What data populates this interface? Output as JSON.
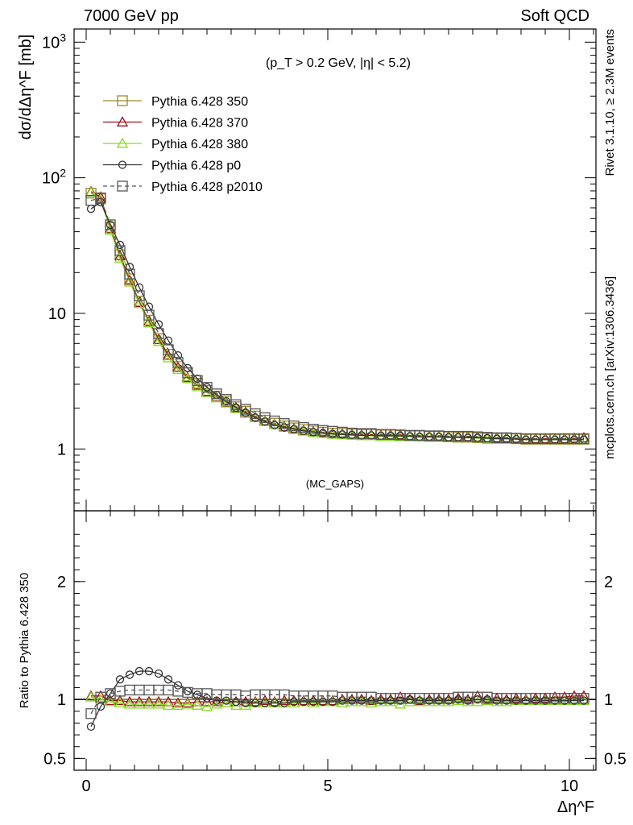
{
  "header": {
    "left": "7000 GeV pp",
    "right": "Soft QCD"
  },
  "side_labels": {
    "rivet": "Rivet 3.1.10, ≥ 2.3M events",
    "mcplots": "mcplots.cern.ch [arXiv:1306.3436]"
  },
  "chart_data": [
    {
      "type": "line",
      "panel": "main",
      "ylabel": "dσ/dΔη^F [mb]",
      "yscale": "log",
      "ylim": [
        0.35,
        1250
      ],
      "xlim": [
        -0.25,
        10.55
      ],
      "ytick_labels": [
        "1",
        "10",
        "10^2",
        "10^3"
      ],
      "annotation": "(p_T > 0.2 GeV, |η| < 5.2)",
      "watermark": "(MC_GAPS)",
      "legend_placement": "top-left",
      "x": [
        0.1,
        0.3,
        0.5,
        0.7,
        0.9,
        1.1,
        1.3,
        1.5,
        1.7,
        1.9,
        2.1,
        2.3,
        2.5,
        2.7,
        2.9,
        3.1,
        3.3,
        3.5,
        3.7,
        3.9,
        4.1,
        4.3,
        4.5,
        4.7,
        4.9,
        5.1,
        5.3,
        5.5,
        5.7,
        5.9,
        6.1,
        6.3,
        6.5,
        6.7,
        6.9,
        7.1,
        7.3,
        7.5,
        7.7,
        7.9,
        8.1,
        8.3,
        8.5,
        8.7,
        8.9,
        9.1,
        9.3,
        9.5,
        9.7,
        9.9,
        10.1,
        10.3
      ],
      "series": [
        {
          "name": "Pythia 6.428 350",
          "color": "#9a8a2a",
          "marker": "square",
          "dash": "solid",
          "values": [
            77,
            70,
            43,
            27,
            18,
            12.3,
            8.9,
            6.5,
            5.0,
            4.05,
            3.45,
            3.05,
            2.7,
            2.45,
            2.25,
            2.05,
            1.9,
            1.75,
            1.63,
            1.55,
            1.48,
            1.43,
            1.39,
            1.36,
            1.33,
            1.31,
            1.3,
            1.29,
            1.28,
            1.28,
            1.27,
            1.27,
            1.26,
            1.25,
            1.25,
            1.24,
            1.24,
            1.23,
            1.22,
            1.22,
            1.21,
            1.2,
            1.2,
            1.2,
            1.19,
            1.18,
            1.18,
            1.18,
            1.18,
            1.18,
            1.18,
            1.18
          ]
        },
        {
          "name": "Pythia 6.428 370",
          "color": "#a01020",
          "marker": "triangle",
          "dash": "solid",
          "values": [
            79,
            72,
            42,
            26.5,
            17.5,
            12.0,
            8.7,
            6.4,
            4.9,
            4.0,
            3.35,
            2.95,
            2.65,
            2.4,
            2.2,
            2.02,
            1.87,
            1.72,
            1.61,
            1.52,
            1.46,
            1.41,
            1.37,
            1.34,
            1.32,
            1.3,
            1.29,
            1.28,
            1.27,
            1.27,
            1.26,
            1.27,
            1.27,
            1.25,
            1.24,
            1.24,
            1.24,
            1.23,
            1.23,
            1.23,
            1.22,
            1.21,
            1.21,
            1.21,
            1.2,
            1.19,
            1.19,
            1.19,
            1.19,
            1.19,
            1.2,
            1.21
          ]
        },
        {
          "name": "Pythia 6.428 380",
          "color": "#88dd22",
          "marker": "triangle",
          "dash": "solid",
          "values": [
            78,
            69,
            41,
            25.5,
            17.0,
            11.8,
            8.5,
            6.2,
            4.7,
            3.85,
            3.3,
            2.9,
            2.6,
            2.38,
            2.18,
            1.98,
            1.82,
            1.7,
            1.59,
            1.51,
            1.44,
            1.39,
            1.35,
            1.32,
            1.3,
            1.28,
            1.27,
            1.26,
            1.25,
            1.25,
            1.24,
            1.24,
            1.23,
            1.23,
            1.22,
            1.22,
            1.22,
            1.21,
            1.21,
            1.21,
            1.2,
            1.19,
            1.19,
            1.19,
            1.18,
            1.17,
            1.17,
            1.17,
            1.17,
            1.17,
            1.17,
            1.17
          ]
        },
        {
          "name": "Pythia 6.428 p0",
          "color": "#333333",
          "marker": "circle",
          "dash": "solid",
          "values": [
            59,
            66,
            45,
            32,
            22,
            15.5,
            11.2,
            8.3,
            6.3,
            4.9,
            3.95,
            3.3,
            2.85,
            2.5,
            2.25,
            2.02,
            1.85,
            1.7,
            1.59,
            1.5,
            1.44,
            1.4,
            1.36,
            1.33,
            1.31,
            1.29,
            1.28,
            1.27,
            1.26,
            1.26,
            1.25,
            1.25,
            1.25,
            1.24,
            1.23,
            1.23,
            1.23,
            1.22,
            1.22,
            1.21,
            1.21,
            1.2,
            1.19,
            1.19,
            1.18,
            1.17,
            1.17,
            1.17,
            1.17,
            1.17,
            1.17,
            1.17
          ]
        },
        {
          "name": "Pythia 6.428 p2010",
          "color": "#555555",
          "marker": "square",
          "dash": "dashed",
          "values": [
            68,
            71,
            45,
            29,
            19.5,
            13.5,
            9.7,
            7.1,
            5.4,
            4.35,
            3.65,
            3.2,
            2.85,
            2.55,
            2.32,
            2.12,
            1.96,
            1.82,
            1.7,
            1.61,
            1.54,
            1.48,
            1.44,
            1.4,
            1.37,
            1.35,
            1.33,
            1.31,
            1.3,
            1.3,
            1.28,
            1.28,
            1.27,
            1.26,
            1.26,
            1.25,
            1.25,
            1.24,
            1.24,
            1.24,
            1.23,
            1.22,
            1.21,
            1.21,
            1.2,
            1.19,
            1.19,
            1.19,
            1.19,
            1.19,
            1.19,
            1.19
          ]
        }
      ]
    },
    {
      "type": "line",
      "panel": "ratio",
      "ylabel": "Ratio to Pythia 6.428 350",
      "xlabel": "Δη^F",
      "ylim": [
        0.4,
        2.6
      ],
      "xlim": [
        -0.25,
        10.55
      ],
      "ytick_labels": [
        "0.5",
        "1",
        "2"
      ],
      "xtick_labels": [
        "0",
        "5",
        "10"
      ],
      "reference_line": 1,
      "x": [
        0.1,
        0.3,
        0.5,
        0.7,
        0.9,
        1.1,
        1.3,
        1.5,
        1.7,
        1.9,
        2.1,
        2.3,
        2.5,
        2.7,
        2.9,
        3.1,
        3.3,
        3.5,
        3.7,
        3.9,
        4.1,
        4.3,
        4.5,
        4.7,
        4.9,
        5.1,
        5.3,
        5.5,
        5.7,
        5.9,
        6.1,
        6.3,
        6.5,
        6.7,
        6.9,
        7.1,
        7.3,
        7.5,
        7.7,
        7.9,
        8.1,
        8.3,
        8.5,
        8.7,
        8.9,
        9.1,
        9.3,
        9.5,
        9.7,
        9.9,
        10.1,
        10.3
      ],
      "series": [
        {
          "name": "Pythia 6.428 350",
          "color": "#9a8a2a",
          "marker": "none",
          "dash": "solid",
          "values": [
            1,
            1,
            1,
            1,
            1,
            1,
            1,
            1,
            1,
            1,
            1,
            1,
            1,
            1,
            1,
            1,
            1,
            1,
            1,
            1,
            1,
            1,
            1,
            1,
            1,
            1,
            1,
            1,
            1,
            1,
            1,
            1,
            1,
            1,
            1,
            1,
            1,
            1,
            1,
            1,
            1,
            1,
            1,
            1,
            1,
            1,
            1,
            1,
            1,
            1,
            1,
            1
          ]
        },
        {
          "name": "Pythia 6.428 370",
          "color": "#a01020",
          "marker": "triangle",
          "dash": "solid",
          "values": [
            1.03,
            1.03,
            0.99,
            0.99,
            0.98,
            0.98,
            0.98,
            0.98,
            0.98,
            0.97,
            0.97,
            0.98,
            0.98,
            0.98,
            0.97,
            0.98,
            0.98,
            0.98,
            0.99,
            0.98,
            0.99,
            0.99,
            0.99,
            0.99,
            0.99,
            0.99,
            1.0,
            1.0,
            1.0,
            0.99,
            1.0,
            1.0,
            1.02,
            1.0,
            0.99,
            1.0,
            1.0,
            1.0,
            1.01,
            1.0,
            1.03,
            1.0,
            1.01,
            1.0,
            1.01,
            1.0,
            1.01,
            1.01,
            1.02,
            1.02,
            1.03,
            1.03
          ]
        },
        {
          "name": "Pythia 6.428 380",
          "color": "#88dd22",
          "marker": "triangle",
          "dash": "solid",
          "values": [
            1.02,
            1.0,
            0.98,
            0.97,
            0.96,
            0.96,
            0.96,
            0.96,
            0.95,
            0.95,
            0.96,
            0.95,
            0.94,
            0.96,
            0.97,
            0.95,
            0.95,
            0.97,
            0.97,
            0.97,
            0.97,
            0.97,
            0.98,
            0.97,
            0.98,
            0.98,
            0.97,
            0.98,
            0.98,
            0.97,
            0.98,
            0.98,
            0.96,
            0.98,
            0.98,
            0.98,
            0.98,
            0.98,
            0.99,
            0.98,
            0.98,
            0.99,
            0.98,
            0.98,
            0.99,
            0.99,
            0.99,
            0.99,
            0.99,
            0.99,
            0.99,
            0.99
          ]
        },
        {
          "name": "Pythia 6.428 p0",
          "color": "#333333",
          "marker": "circle",
          "dash": "solid",
          "values": [
            0.77,
            0.94,
            1.05,
            1.17,
            1.21,
            1.24,
            1.24,
            1.22,
            1.17,
            1.12,
            1.07,
            1.04,
            1.01,
            0.99,
            0.99,
            0.98,
            0.97,
            0.97,
            0.97,
            0.97,
            0.97,
            0.98,
            0.98,
            0.98,
            0.98,
            0.98,
            0.99,
            0.99,
            0.99,
            0.99,
            0.99,
            0.99,
            0.99,
            1.0,
            0.99,
            0.99,
            0.99,
            0.99,
            1.0,
            0.99,
            1.0,
            1.0,
            0.99,
            0.99,
            0.99,
            0.99,
            0.99,
            0.99,
            0.99,
            0.99,
            0.99,
            0.99
          ]
        },
        {
          "name": "Pythia 6.428 p2010",
          "color": "#555555",
          "marker": "square",
          "dash": "dashed",
          "values": [
            0.88,
            1.02,
            1.05,
            1.07,
            1.08,
            1.08,
            1.08,
            1.08,
            1.08,
            1.07,
            1.06,
            1.05,
            1.05,
            1.04,
            1.04,
            1.04,
            1.03,
            1.04,
            1.04,
            1.04,
            1.04,
            1.03,
            1.03,
            1.03,
            1.03,
            1.03,
            1.02,
            1.02,
            1.02,
            1.02,
            1.01,
            1.01,
            1.01,
            1.01,
            1.01,
            1.01,
            1.01,
            1.01,
            1.02,
            1.02,
            1.02,
            1.02,
            1.01,
            1.01,
            1.01,
            1.01,
            1.01,
            1.01,
            1.01,
            1.01,
            1.01,
            1.01
          ]
        }
      ]
    }
  ]
}
